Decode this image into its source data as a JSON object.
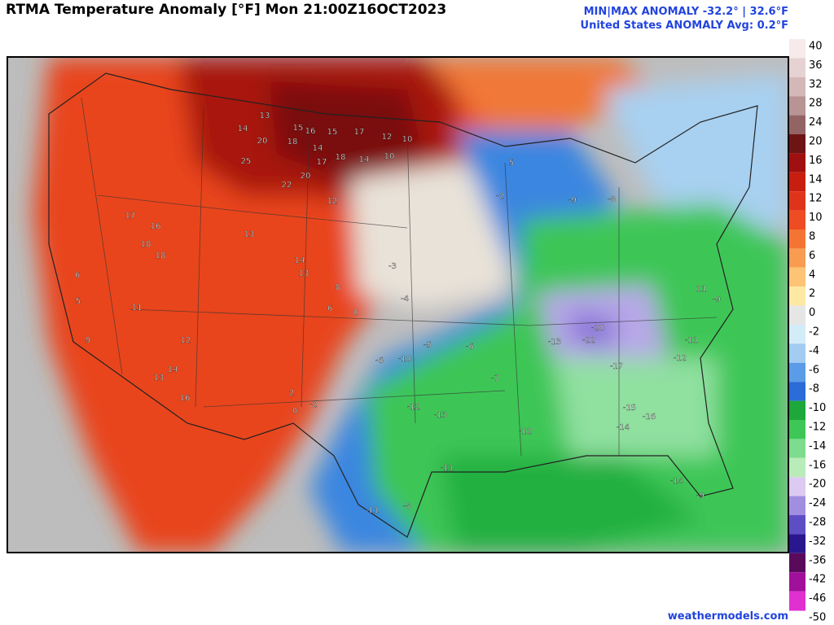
{
  "header": {
    "title": "RTMA Temperature Anomaly [°F]  Mon 21:00Z16OCT2023",
    "minmax": "MIN|MAX ANOMALY -32.2° | 32.6°F",
    "average": "United States ANOMALY Avg: 0.2°F"
  },
  "colorbar": {
    "levels": [
      40,
      36,
      32,
      28,
      24,
      20,
      16,
      14,
      12,
      10,
      8,
      6,
      4,
      2,
      0,
      -2,
      -4,
      -6,
      -8,
      -10,
      -12,
      -14,
      -16,
      -20,
      -24,
      -28,
      -32,
      -36,
      -42,
      -46,
      -50
    ],
    "colors": [
      "#f6eaea",
      "#e6d2d2",
      "#d4b8b8",
      "#b89494",
      "#946464",
      "#6e1414",
      "#a01010",
      "#c81e10",
      "#e0341a",
      "#ee4c22",
      "#f47434",
      "#f89c52",
      "#fcc474",
      "#fde8a4",
      "#e6e6e6",
      "#d2ecf8",
      "#a2ccf2",
      "#5a9ce8",
      "#2a6cd8",
      "#1ea83c",
      "#3ec656",
      "#7edc8e",
      "#b8ecb8",
      "#dccaf2",
      "#a28ee0",
      "#5e4ec6",
      "#2a168e",
      "#5a0a5a",
      "#a0109a",
      "#e030d0",
      "#f494f2"
    ]
  },
  "map_labels": [
    13,
    15,
    16,
    15,
    17,
    12,
    10,
    20,
    18,
    14,
    14,
    17,
    18,
    14,
    10,
    25,
    20,
    22,
    12,
    17,
    16,
    18,
    18,
    13,
    14,
    13,
    8,
    6,
    0,
    -3,
    -4,
    -5,
    -6,
    -10,
    -13,
    -11,
    -11,
    -12,
    -15,
    -16,
    -14,
    -22,
    -20,
    -17,
    -13,
    -8,
    -9,
    11,
    12,
    13,
    14,
    16,
    -2,
    2,
    0,
    -8,
    9,
    5,
    6,
    -6,
    -7,
    -12,
    5,
    -2,
    -14,
    -9,
    11,
    -11,
    -12,
    -9
  ],
  "footer": "weathermodels.com"
}
